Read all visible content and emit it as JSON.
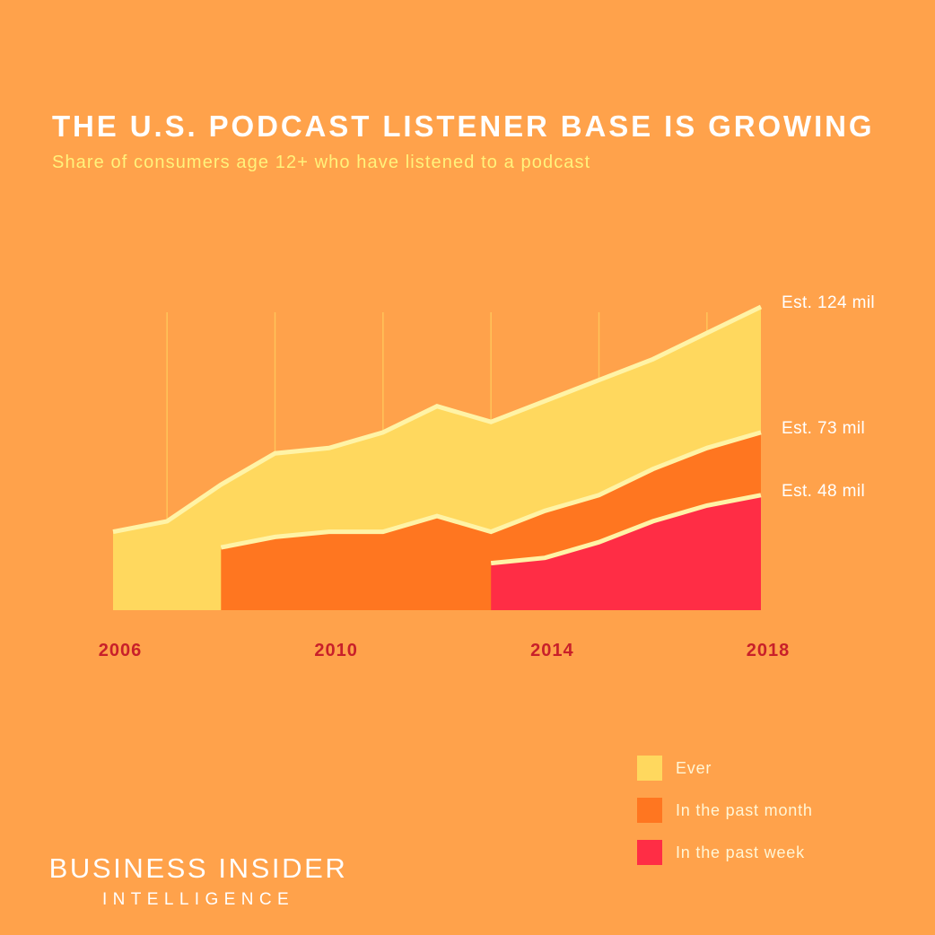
{
  "header": {
    "title": "THE U.S. PODCAST LISTENER BASE IS GROWING",
    "subtitle": "Share of consumers age 12+ who have listened to a podcast"
  },
  "colors": {
    "background": "#FFA24B",
    "ever": "#FFD85E",
    "past_month": "#FF7620",
    "past_week": "#FF2D45",
    "outline": "#FFF3A6",
    "gridline": "#FFC45A",
    "tick_label": "#C8202A",
    "annotation": "#FFFFFF"
  },
  "chart_data": {
    "type": "area",
    "title": "THE U.S. PODCAST LISTENER BASE IS GROWING",
    "subtitle": "Share of consumers age 12+ who have listened to a podcast",
    "x": [
      2006,
      2007,
      2008,
      2009,
      2010,
      2011,
      2012,
      2013,
      2014,
      2015,
      2016,
      2017,
      2018
    ],
    "x_ticks": [
      "2006",
      "2010",
      "2014",
      "2018"
    ],
    "ylim": [
      0,
      58
    ],
    "grid": true,
    "legend_position": "bottom-right",
    "series": [
      {
        "name": "Ever",
        "values": [
          15,
          17,
          24,
          30,
          31,
          34,
          39,
          36,
          40,
          44,
          48,
          53,
          58
        ]
      },
      {
        "name": "In the past month",
        "values": [
          null,
          null,
          12,
          14,
          15,
          15,
          18,
          15,
          19,
          22,
          27,
          31,
          34
        ]
      },
      {
        "name": "In the past week",
        "values": [
          null,
          null,
          null,
          null,
          null,
          null,
          null,
          9,
          10,
          13,
          17,
          20,
          22
        ]
      }
    ],
    "annotations": [
      "Est. 124 mil",
      "Est. 73 mil",
      "Est. 48 mil"
    ]
  },
  "legend": {
    "items": [
      {
        "label": "Ever",
        "color": "#FFD85E"
      },
      {
        "label": "In the past month",
        "color": "#FF7620"
      },
      {
        "label": "In the past week",
        "color": "#FF2D45"
      }
    ]
  },
  "brand": {
    "main": "BUSINESS INSIDER",
    "sub": "INTELLIGENCE"
  }
}
